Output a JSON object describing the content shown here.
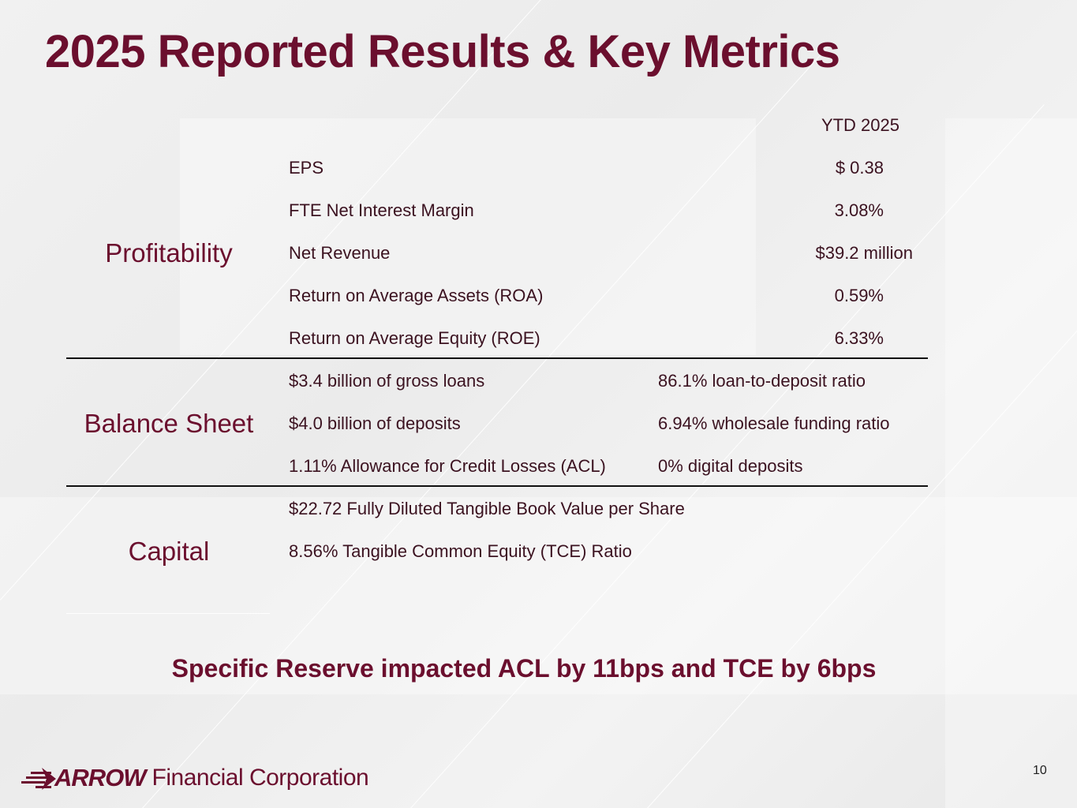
{
  "slide": {
    "title": "2025 Reported Results & Key Metrics",
    "column_header": "YTD 2025",
    "sections": [
      {
        "label": "Profitability",
        "rows": [
          {
            "metric": "EPS",
            "value": "$ 0.38"
          },
          {
            "metric": "FTE Net Interest Margin",
            "value": "3.08%"
          },
          {
            "metric": "Net Revenue",
            "value": "$39.2 million"
          },
          {
            "metric": "Return on Average Assets (ROA)",
            "value": "0.59%"
          },
          {
            "metric": "Return on Average Equity (ROE)",
            "value": "6.33%"
          }
        ]
      },
      {
        "label": "Balance Sheet",
        "rows": [
          {
            "left": "$3.4 billion of gross loans",
            "right": "86.1% loan-to-deposit ratio"
          },
          {
            "left": "$4.0 billion of deposits",
            "right": "6.94% wholesale funding ratio"
          },
          {
            "left": "1.11% Allowance for Credit Losses (ACL)",
            "right": "0% digital deposits"
          }
        ]
      },
      {
        "label": "Capital",
        "rows": [
          {
            "text": "$22.72 Fully Diluted Tangible Book Value per Share"
          },
          {
            "text": "8.56% Tangible Common Equity (TCE) Ratio"
          }
        ]
      }
    ],
    "footnote": "Specific Reserve impacted ACL by 11bps and TCE by 6bps",
    "page_number": "10"
  },
  "brand": {
    "logo_strong": "ARROW",
    "logo_rest": "Financial Corporation",
    "primary_color": "#6b0f2e"
  }
}
